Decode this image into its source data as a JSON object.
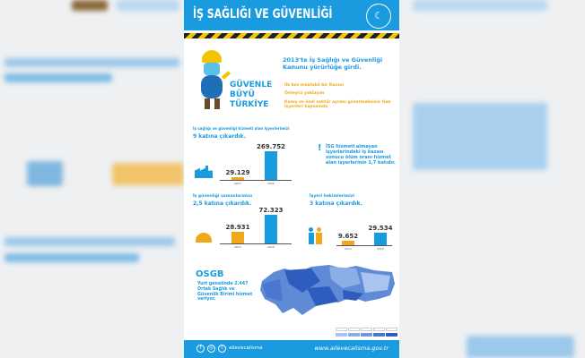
{
  "header": {
    "title": "İŞ SAĞLIĞI VE GÜVENLİĞİ"
  },
  "intro": {
    "slogan": [
      "GÜVENLE",
      "BÜYÜ",
      "TÜRKİYE"
    ],
    "headline": "2013'te İş Sağlığı ve Güvenliği Kanunu yürürlüğe girdi.",
    "bullets": [
      "İlk kez müstakil bir Kanun",
      "Önleyici yaklaşım",
      "Kamu ve özel sektör ayrımı gözetmeksizin tüm işyerleri kapsamda"
    ]
  },
  "chart_data": [
    {
      "type": "bar",
      "title": "İş sağlığı ve güvenliği hizmeti alan işyerlerimizi",
      "subtitle": "9 katına çıkardık.",
      "categories": [
        "2013",
        "2020"
      ],
      "values": [
        29129,
        269752
      ],
      "labels": [
        "29.129",
        "269.752"
      ],
      "colors": [
        "#f0a818",
        "#1a9be0"
      ]
    },
    {
      "type": "bar",
      "title": "İş güvenliği uzmanlarımızı",
      "subtitle": "2,5 katına çıkardık.",
      "categories": [
        "2013",
        "2020"
      ],
      "values": [
        28931,
        72323
      ],
      "labels": [
        "28.931",
        "72.323"
      ],
      "colors": [
        "#f0a818",
        "#1a9be0"
      ]
    },
    {
      "type": "bar",
      "title": "İşyeri hekimlerimizi",
      "subtitle": "3 katına çıkardık.",
      "categories": [
        "2013",
        "2020"
      ],
      "values": [
        9652,
        29534
      ],
      "labels": [
        "9.652",
        "29.534"
      ],
      "colors": [
        "#f0a818",
        "#1a9be0"
      ]
    }
  ],
  "note": {
    "text": "İSG hizmeti almayan işyerlerindeki iş kazası sonucu ölüm oranı hizmet alan işyerlerinin 1,7 katıdır."
  },
  "osgb": {
    "title": "OSGB",
    "text": "Yurt genelinde 2.447 Ortak Sağlık ve Güvenlik Birimi hizmet veriyor.",
    "legend_colors": [
      "#a9c4ee",
      "#8aaee6",
      "#6f97dc",
      "#4b77d0",
      "#2f5dbf"
    ]
  },
  "footer": {
    "handle": "ailevecalisma",
    "url": "www.ailevecalisma.gov.tr"
  }
}
